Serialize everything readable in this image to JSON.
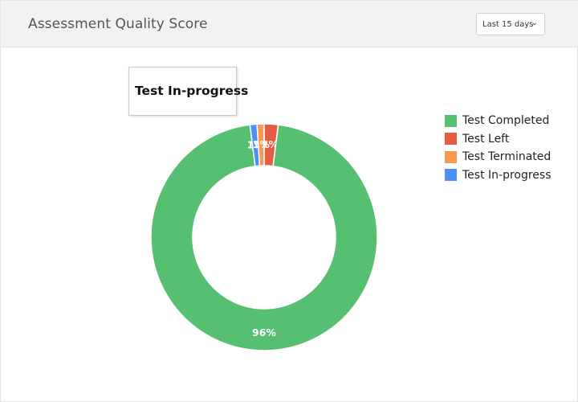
{
  "card": {
    "title": "Assessment Quality Score",
    "range_select": {
      "value": "Last 15 days",
      "chevron": "⌄"
    }
  },
  "tooltip": {
    "text": "Test In-progress"
  },
  "chart_data": {
    "type": "pie",
    "donut": true,
    "categories": [
      "Test Completed",
      "Test Left",
      "Test Terminated",
      "Test In-progress"
    ],
    "values": [
      96,
      2,
      1,
      1
    ],
    "data_labels": [
      "96%",
      "2%",
      "1%",
      "1%"
    ],
    "colors": [
      "#56bf72",
      "#e55e43",
      "#f59a52",
      "#4f8ff5"
    ],
    "legend_position": "right"
  }
}
